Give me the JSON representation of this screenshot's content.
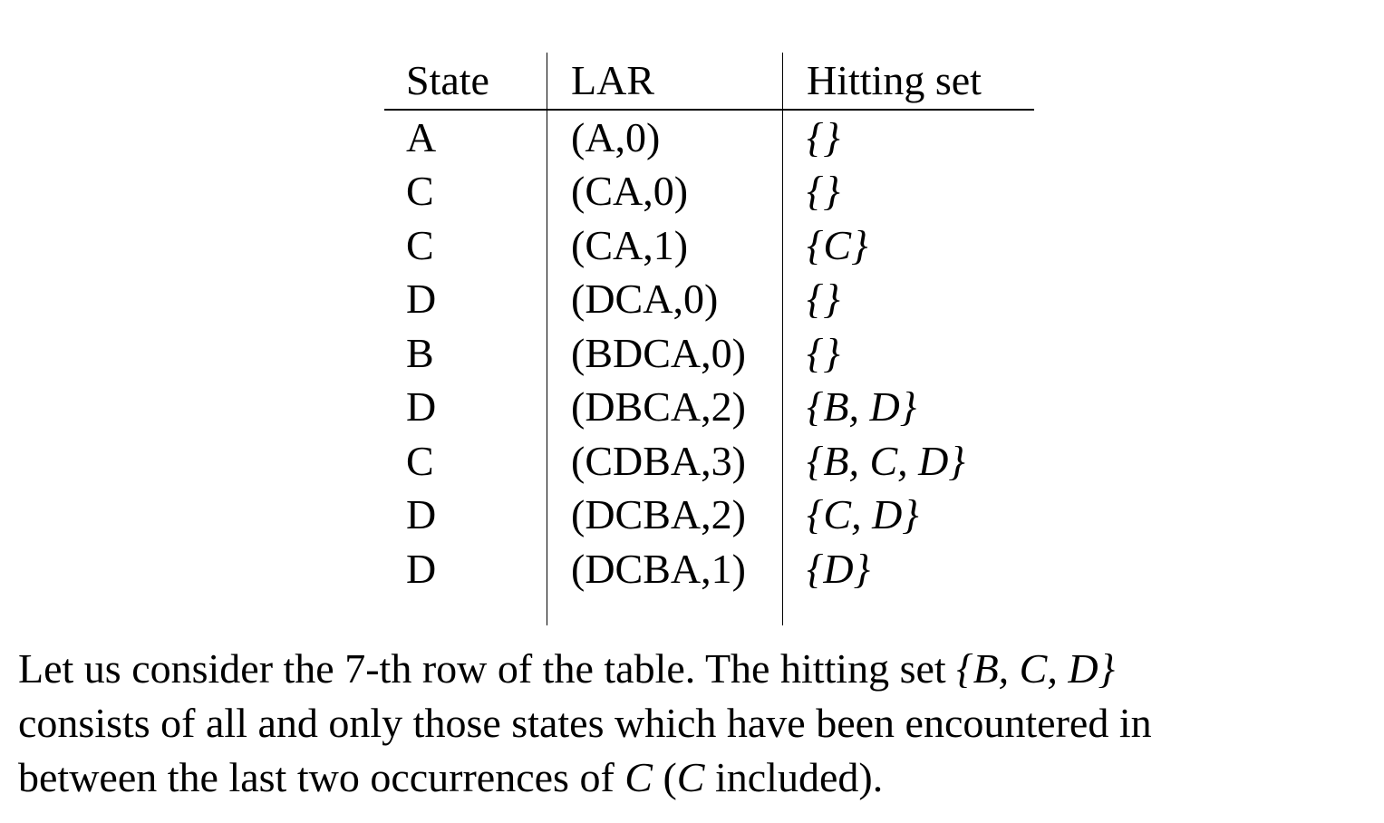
{
  "table": {
    "headers": [
      "State",
      "LAR",
      "Hitting set"
    ],
    "rows": [
      {
        "state": "A",
        "lar": "(A,0)",
        "hitting_set": "{}"
      },
      {
        "state": "C",
        "lar": "(CA,0)",
        "hitting_set": "{}"
      },
      {
        "state": "C",
        "lar": "(CA,1)",
        "hitting_set": "{C}"
      },
      {
        "state": "D",
        "lar": "(DCA,0)",
        "hitting_set": "{}"
      },
      {
        "state": "B",
        "lar": "(BDCA,0)",
        "hitting_set": "{}"
      },
      {
        "state": "D",
        "lar": "(DBCA,2)",
        "hitting_set": "{B, D}"
      },
      {
        "state": "C",
        "lar": "(CDBA,3)",
        "hitting_set": "{B, C, D}"
      },
      {
        "state": "D",
        "lar": "(DCBA,2)",
        "hitting_set": "{C, D}"
      },
      {
        "state": "D",
        "lar": "(DCBA,1)",
        "hitting_set": "{D}"
      }
    ]
  },
  "paragraph": {
    "line1_text": "Let us consider the 7-th row of the table. The hitting set ",
    "line1_math": "{B, C, D}",
    "line2_text": "consists of all and only those states which have been encountered in",
    "line3_text_a": "between the last two occurrences of ",
    "line3_math_a": "C",
    "line3_text_b": " (",
    "line3_math_b": "C",
    "line3_text_c": " included)."
  }
}
